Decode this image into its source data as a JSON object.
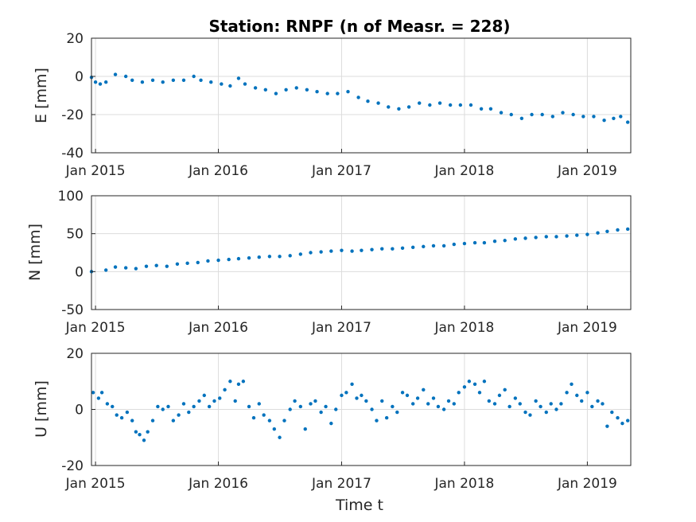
{
  "chart_data": {
    "title": "Station: RNPF (n of Measr. = 228)",
    "xlabel": "Time t",
    "x_ticks": [
      "Jan 2015",
      "Jan 2016",
      "Jan 2017",
      "Jan 2018",
      "Jan 2019"
    ],
    "x_range": [
      "2014-12-20",
      "2019-05-10"
    ],
    "marker_color": "#0072bd",
    "grid": true,
    "panels": [
      {
        "type": "scatter",
        "ylabel": "E [mm]",
        "ylim": [
          -40,
          20
        ],
        "y_ticks": [
          "20",
          "0",
          "-20",
          "-40"
        ],
        "points": [
          [
            "2014-12-20",
            -0.5
          ],
          [
            "2015-01-01",
            -3
          ],
          [
            "2015-01-15",
            -4
          ],
          [
            "2015-02-01",
            -3
          ],
          [
            "2015-03-01",
            1
          ],
          [
            "2015-04-01",
            0
          ],
          [
            "2015-04-20",
            -2
          ],
          [
            "2015-05-20",
            -3
          ],
          [
            "2015-06-20",
            -2
          ],
          [
            "2015-07-20",
            -3
          ],
          [
            "2015-08-20",
            -2
          ],
          [
            "2015-09-20",
            -2
          ],
          [
            "2015-10-20",
            0
          ],
          [
            "2015-11-10",
            -2
          ],
          [
            "2015-12-10",
            -3
          ],
          [
            "2016-01-10",
            -4
          ],
          [
            "2016-02-05",
            -5
          ],
          [
            "2016-03-01",
            -1
          ],
          [
            "2016-03-20",
            -4
          ],
          [
            "2016-04-20",
            -6
          ],
          [
            "2016-05-20",
            -7
          ],
          [
            "2016-06-20",
            -9
          ],
          [
            "2016-07-20",
            -7
          ],
          [
            "2016-08-20",
            -6
          ],
          [
            "2016-09-20",
            -7
          ],
          [
            "2016-10-20",
            -8
          ],
          [
            "2016-11-20",
            -9
          ],
          [
            "2016-12-20",
            -9
          ],
          [
            "2017-01-20",
            -8
          ],
          [
            "2017-02-20",
            -11
          ],
          [
            "2017-03-20",
            -13
          ],
          [
            "2017-04-20",
            -14
          ],
          [
            "2017-05-20",
            -16
          ],
          [
            "2017-06-20",
            -17
          ],
          [
            "2017-07-20",
            -16
          ],
          [
            "2017-08-20",
            -14
          ],
          [
            "2017-09-20",
            -15
          ],
          [
            "2017-10-20",
            -14
          ],
          [
            "2017-11-20",
            -15
          ],
          [
            "2017-12-20",
            -15
          ],
          [
            "2018-01-20",
            -15
          ],
          [
            "2018-02-20",
            -17
          ],
          [
            "2018-03-20",
            -17
          ],
          [
            "2018-04-20",
            -19
          ],
          [
            "2018-05-20",
            -20
          ],
          [
            "2018-06-20",
            -22
          ],
          [
            "2018-07-20",
            -20
          ],
          [
            "2018-08-20",
            -20
          ],
          [
            "2018-09-20",
            -21
          ],
          [
            "2018-10-20",
            -19
          ],
          [
            "2018-11-20",
            -20
          ],
          [
            "2018-12-20",
            -21
          ],
          [
            "2019-01-20",
            -21
          ],
          [
            "2019-02-20",
            -23
          ],
          [
            "2019-03-20",
            -22
          ],
          [
            "2019-04-10",
            -21
          ],
          [
            "2019-05-01",
            -24
          ]
        ]
      },
      {
        "type": "scatter",
        "ylabel": "N [mm]",
        "ylim": [
          -50,
          100
        ],
        "y_ticks": [
          "100",
          "50",
          "0",
          "-50"
        ],
        "points": [
          [
            "2014-12-20",
            0
          ],
          [
            "2015-02-01",
            2
          ],
          [
            "2015-03-01",
            6
          ],
          [
            "2015-04-01",
            5
          ],
          [
            "2015-05-01",
            4
          ],
          [
            "2015-06-01",
            7
          ],
          [
            "2015-07-01",
            8
          ],
          [
            "2015-08-01",
            7
          ],
          [
            "2015-09-01",
            10
          ],
          [
            "2015-10-01",
            11
          ],
          [
            "2015-11-01",
            12
          ],
          [
            "2015-12-01",
            14
          ],
          [
            "2016-01-01",
            15
          ],
          [
            "2016-02-01",
            16
          ],
          [
            "2016-03-01",
            17
          ],
          [
            "2016-04-01",
            18
          ],
          [
            "2016-05-01",
            19
          ],
          [
            "2016-06-01",
            20
          ],
          [
            "2016-07-01",
            20
          ],
          [
            "2016-08-01",
            21
          ],
          [
            "2016-09-01",
            23
          ],
          [
            "2016-10-01",
            25
          ],
          [
            "2016-11-01",
            26
          ],
          [
            "2016-12-01",
            27
          ],
          [
            "2017-01-01",
            28
          ],
          [
            "2017-02-01",
            27
          ],
          [
            "2017-03-01",
            28
          ],
          [
            "2017-04-01",
            29
          ],
          [
            "2017-05-01",
            30
          ],
          [
            "2017-06-01",
            30
          ],
          [
            "2017-07-01",
            31
          ],
          [
            "2017-08-01",
            32
          ],
          [
            "2017-09-01",
            33
          ],
          [
            "2017-10-01",
            34
          ],
          [
            "2017-11-01",
            34
          ],
          [
            "2017-12-01",
            36
          ],
          [
            "2018-01-01",
            37
          ],
          [
            "2018-02-01",
            38
          ],
          [
            "2018-03-01",
            38
          ],
          [
            "2018-04-01",
            40
          ],
          [
            "2018-05-01",
            41
          ],
          [
            "2018-06-01",
            43
          ],
          [
            "2018-07-01",
            44
          ],
          [
            "2018-08-01",
            45
          ],
          [
            "2018-09-01",
            46
          ],
          [
            "2018-10-01",
            46
          ],
          [
            "2018-11-01",
            47
          ],
          [
            "2018-12-01",
            48
          ],
          [
            "2019-01-01",
            49
          ],
          [
            "2019-02-01",
            51
          ],
          [
            "2019-03-01",
            53
          ],
          [
            "2019-04-01",
            55
          ],
          [
            "2019-05-01",
            56
          ]
        ]
      },
      {
        "type": "scatter",
        "ylabel": "U [mm]",
        "ylim": [
          -20,
          20
        ],
        "y_ticks": [
          "20",
          "0",
          "-20"
        ],
        "points": [
          [
            "2014-12-25",
            6
          ],
          [
            "2015-01-10",
            4
          ],
          [
            "2015-01-20",
            6
          ],
          [
            "2015-02-05",
            2
          ],
          [
            "2015-02-20",
            1
          ],
          [
            "2015-03-05",
            -2
          ],
          [
            "2015-03-20",
            -3
          ],
          [
            "2015-04-05",
            -1
          ],
          [
            "2015-04-20",
            -4
          ],
          [
            "2015-05-01",
            -8
          ],
          [
            "2015-05-12",
            -9
          ],
          [
            "2015-05-25",
            -11
          ],
          [
            "2015-06-05",
            -8
          ],
          [
            "2015-06-20",
            -4
          ],
          [
            "2015-07-05",
            1
          ],
          [
            "2015-07-20",
            0
          ],
          [
            "2015-08-05",
            1
          ],
          [
            "2015-08-20",
            -4
          ],
          [
            "2015-09-05",
            -2
          ],
          [
            "2015-09-20",
            2
          ],
          [
            "2015-10-05",
            -1
          ],
          [
            "2015-10-20",
            1
          ],
          [
            "2015-11-05",
            3
          ],
          [
            "2015-11-20",
            5
          ],
          [
            "2015-12-05",
            1
          ],
          [
            "2015-12-20",
            3
          ],
          [
            "2016-01-05",
            4
          ],
          [
            "2016-01-20",
            7
          ],
          [
            "2016-02-05",
            10
          ],
          [
            "2016-02-20",
            3
          ],
          [
            "2016-03-01",
            9
          ],
          [
            "2016-03-15",
            10
          ],
          [
            "2016-04-01",
            1
          ],
          [
            "2016-04-15",
            -3
          ],
          [
            "2016-05-01",
            2
          ],
          [
            "2016-05-15",
            -2
          ],
          [
            "2016-06-01",
            -4
          ],
          [
            "2016-06-15",
            -7
          ],
          [
            "2016-07-01",
            -10
          ],
          [
            "2016-07-15",
            -4
          ],
          [
            "2016-08-01",
            0
          ],
          [
            "2016-08-15",
            3
          ],
          [
            "2016-09-01",
            1
          ],
          [
            "2016-09-15",
            -7
          ],
          [
            "2016-10-01",
            2
          ],
          [
            "2016-10-15",
            3
          ],
          [
            "2016-11-01",
            -1
          ],
          [
            "2016-11-15",
            1
          ],
          [
            "2016-12-01",
            -5
          ],
          [
            "2016-12-15",
            0
          ],
          [
            "2017-01-01",
            5
          ],
          [
            "2017-01-15",
            6
          ],
          [
            "2017-02-01",
            9
          ],
          [
            "2017-02-15",
            4
          ],
          [
            "2017-03-01",
            5
          ],
          [
            "2017-03-15",
            3
          ],
          [
            "2017-04-01",
            0
          ],
          [
            "2017-04-15",
            -4
          ],
          [
            "2017-05-01",
            3
          ],
          [
            "2017-05-15",
            -3
          ],
          [
            "2017-06-01",
            1
          ],
          [
            "2017-06-15",
            -1
          ],
          [
            "2017-07-01",
            6
          ],
          [
            "2017-07-15",
            5
          ],
          [
            "2017-08-01",
            2
          ],
          [
            "2017-08-15",
            4
          ],
          [
            "2017-09-01",
            7
          ],
          [
            "2017-09-15",
            2
          ],
          [
            "2017-10-01",
            4
          ],
          [
            "2017-10-15",
            1
          ],
          [
            "2017-11-01",
            0
          ],
          [
            "2017-11-15",
            3
          ],
          [
            "2017-12-01",
            2
          ],
          [
            "2017-12-15",
            6
          ],
          [
            "2018-01-01",
            8
          ],
          [
            "2018-01-15",
            10
          ],
          [
            "2018-02-01",
            9
          ],
          [
            "2018-02-15",
            6
          ],
          [
            "2018-03-01",
            10
          ],
          [
            "2018-03-15",
            3
          ],
          [
            "2018-04-01",
            2
          ],
          [
            "2018-04-15",
            5
          ],
          [
            "2018-05-01",
            7
          ],
          [
            "2018-05-15",
            1
          ],
          [
            "2018-06-01",
            4
          ],
          [
            "2018-06-15",
            2
          ],
          [
            "2018-07-01",
            -1
          ],
          [
            "2018-07-15",
            -2
          ],
          [
            "2018-08-01",
            3
          ],
          [
            "2018-08-15",
            1
          ],
          [
            "2018-09-01",
            -1
          ],
          [
            "2018-09-15",
            2
          ],
          [
            "2018-10-01",
            0
          ],
          [
            "2018-10-15",
            2
          ],
          [
            "2018-11-01",
            6
          ],
          [
            "2018-11-15",
            9
          ],
          [
            "2018-12-01",
            5
          ],
          [
            "2018-12-15",
            3
          ],
          [
            "2019-01-01",
            6
          ],
          [
            "2019-01-15",
            1
          ],
          [
            "2019-02-01",
            3
          ],
          [
            "2019-02-15",
            2
          ],
          [
            "2019-03-01",
            -6
          ],
          [
            "2019-03-15",
            -1
          ],
          [
            "2019-04-01",
            -3
          ],
          [
            "2019-04-15",
            -5
          ],
          [
            "2019-05-01",
            -4
          ]
        ]
      }
    ]
  }
}
